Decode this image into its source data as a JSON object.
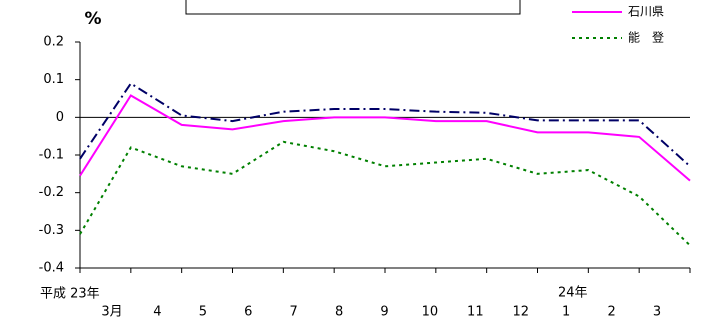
{
  "chart_data": {
    "type": "line",
    "y_unit": "%",
    "categories": [
      "3月",
      "4",
      "5",
      "6",
      "7",
      "8",
      "9",
      "10",
      "11",
      "12",
      "1",
      "2",
      "3"
    ],
    "year_labels": [
      "平成 23年",
      "24年"
    ],
    "series": [
      {
        "name": "石川県",
        "color": "#ff00ff",
        "dash": "",
        "values": [
          -0.155,
          0.058,
          -0.02,
          -0.032,
          -0.01,
          0,
          0,
          -0.01,
          -0.01,
          -0.04,
          -0.04,
          -0.052,
          -0.168
        ]
      },
      {
        "name": "能　登",
        "color": "#008000",
        "dash": "3,4",
        "values": [
          -0.31,
          -0.08,
          -0.13,
          -0.15,
          -0.065,
          -0.09,
          -0.13,
          -0.12,
          -0.11,
          -0.15,
          -0.14,
          -0.21,
          -0.34
        ]
      },
      {
        "color": "#000066",
        "dash": "10,4,2,4",
        "values": [
          -0.11,
          0.09,
          0.005,
          -0.01,
          0.015,
          0.022,
          0.022,
          0.015,
          0.012,
          -0.008,
          -0.008,
          -0.008,
          -0.13
        ]
      }
    ],
    "ylim": [
      -0.4,
      0.2
    ],
    "yticks": [
      -0.4,
      -0.3,
      -0.2,
      -0.1,
      0,
      0.1,
      0.2
    ]
  }
}
